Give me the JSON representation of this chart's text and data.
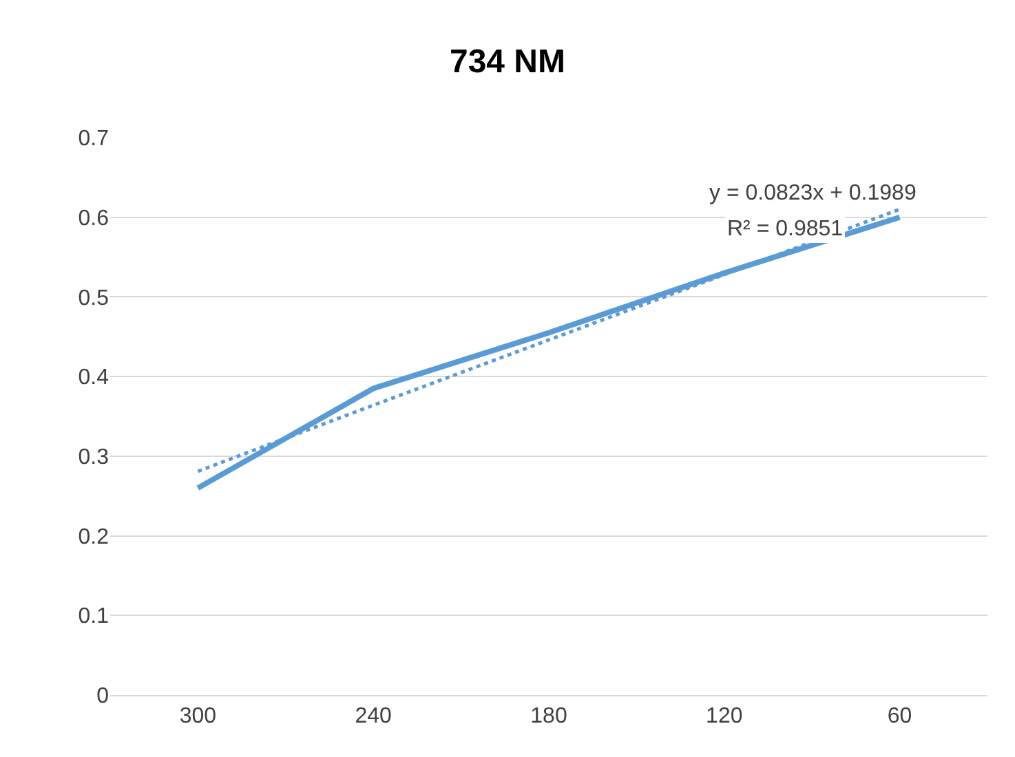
{
  "chart_data": {
    "type": "line",
    "title": "734 NM",
    "categories": [
      "300",
      "240",
      "180",
      "120",
      "60"
    ],
    "series": [
      {
        "color": "#5b9bd5",
        "values": [
          0.26,
          0.385,
          0.455,
          0.53,
          0.6
        ],
        "line_style": "solid"
      },
      {
        "type": "line",
        "color": "#5b9bd5",
        "values": [
          0.281,
          0.364,
          0.446,
          0.528,
          0.61
        ],
        "line_style": "dotted"
      }
    ],
    "ylim": [
      0,
      0.7
    ],
    "yticks": [
      0,
      0.1,
      0.2,
      0.3,
      0.4,
      0.5,
      0.6,
      0.7
    ],
    "grid": "y",
    "marker": "none",
    "annotations": [
      "y = 0.0823x + 0.1989",
      "R² = 0.9851"
    ]
  }
}
